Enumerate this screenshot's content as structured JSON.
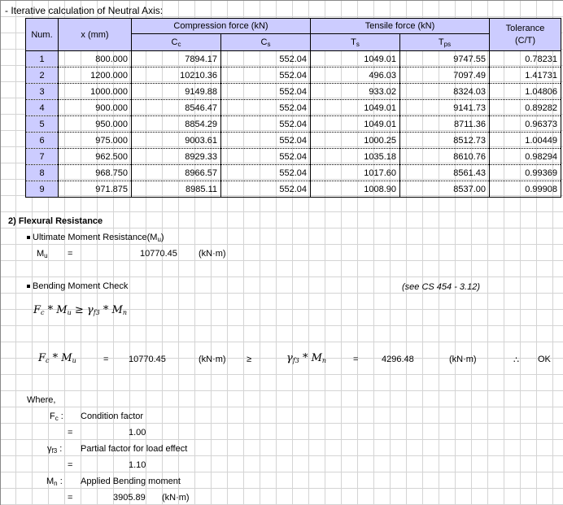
{
  "header": {
    "title": "- Iterative calculation of Neutral Axis:"
  },
  "table": {
    "col_num": "Num.",
    "col_x": "x (mm)",
    "group_comp": "Compression force  (kN)",
    "group_tens": "Tensile force  (kN)",
    "col_tol1": "Tolerance",
    "col_tol2": "(C/T)",
    "sub_cc": "C",
    "sub_cc_s": "c",
    "sub_cs": "C",
    "sub_cs_s": "s",
    "sub_ts": "T",
    "sub_ts_s": "s",
    "sub_tps": "T",
    "sub_tps_s": "ps",
    "rows": [
      {
        "num": "1",
        "x": "800.000",
        "cc": "7894.17",
        "cs": "552.04",
        "ts": "1049.01",
        "tps": "9747.55",
        "tol": "0.78231"
      },
      {
        "num": "2",
        "x": "1200.000",
        "cc": "10210.36",
        "cs": "552.04",
        "ts": "496.03",
        "tps": "7097.49",
        "tol": "1.41731"
      },
      {
        "num": "3",
        "x": "1000.000",
        "cc": "9149.88",
        "cs": "552.04",
        "ts": "933.02",
        "tps": "8324.03",
        "tol": "1.04806"
      },
      {
        "num": "4",
        "x": "900.000",
        "cc": "8546.47",
        "cs": "552.04",
        "ts": "1049.01",
        "tps": "9141.73",
        "tol": "0.89282"
      },
      {
        "num": "5",
        "x": "950.000",
        "cc": "8854.29",
        "cs": "552.04",
        "ts": "1049.01",
        "tps": "8711.36",
        "tol": "0.96373"
      },
      {
        "num": "6",
        "x": "975.000",
        "cc": "9003.61",
        "cs": "552.04",
        "ts": "1000.25",
        "tps": "8512.73",
        "tol": "1.00449"
      },
      {
        "num": "7",
        "x": "962.500",
        "cc": "8929.33",
        "cs": "552.04",
        "ts": "1035.18",
        "tps": "8610.76",
        "tol": "0.98294"
      },
      {
        "num": "8",
        "x": "968.750",
        "cc": "8966.57",
        "cs": "552.04",
        "ts": "1017.60",
        "tps": "8561.43",
        "tol": "0.99369"
      },
      {
        "num": "9",
        "x": "971.875",
        "cc": "8985.11",
        "cs": "552.04",
        "ts": "1008.90",
        "tps": "8537.00",
        "tol": "0.99908"
      }
    ]
  },
  "flexural": {
    "heading": "2) Flexural Resistance",
    "umr_label": "Ultimate Moment Resistance(M",
    "umr_sub": "u",
    "umr_close": ")",
    "mu_sym": "M",
    "mu_sub": "u",
    "eq": "=",
    "mu_value": "10770.45",
    "unit": "(kN·m)",
    "bmc_label": "Bending Moment Check",
    "ref": "(see CS 454 - 3.12)",
    "formula_fc": "F",
    "formula_fc_sub": "c",
    "formula_star": " * ",
    "formula_mu": "M",
    "formula_mu_sub": "u",
    "formula_ge": " ≥ ",
    "formula_gamma": "γ",
    "formula_gamma_sub": "f3",
    "formula_mn": "M",
    "formula_mn_sub": "n",
    "lhs_value": "10770.45",
    "ge_sym": "≥",
    "rhs_value": "4296.48",
    "therefore": "∴",
    "ok": "OK"
  },
  "where": {
    "label": "Where,",
    "fc_sym": "F",
    "fc_sub": "c",
    "colon": ":",
    "fc_desc": "Condition factor",
    "fc_value": "1.00",
    "gamma_sym": "γ",
    "gamma_sub": "f3",
    "gamma_desc": "Partial factor for load effect",
    "gamma_value": "1.10",
    "mn_sym": "M",
    "mn_sub": "n",
    "mn_desc": "Applied Bending moment",
    "mn_value": "3905.89",
    "unit": "(kN·m)"
  }
}
